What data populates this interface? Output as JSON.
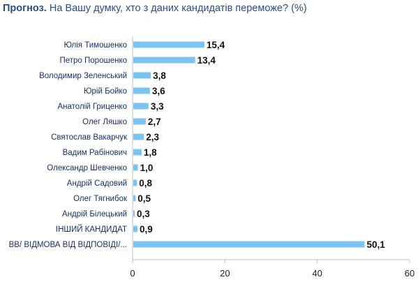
{
  "header": {
    "title_bold": "Прогноз.",
    "title_rest": " На Вашу думку, хто з даних кандидатів переможе? (%)"
  },
  "chart_data": {
    "type": "bar",
    "orientation": "horizontal",
    "title": "Прогноз. На Вашу думку, хто з даних кандидатів переможе? (%)",
    "categories": [
      "Юлія Тимошенко",
      "Петро Порошенко",
      "Володимир Зеленський",
      "Юрій Бойко",
      "Анатолій Гриценко",
      "Олег Ляшко",
      "Святослав Вакарчук",
      "Вадим Рабінович",
      "Олександр Шевченко",
      "Андрій Садовий",
      "Олег Тягнибок",
      "Андрій Білецький",
      "ІНШИЙ КАНДИДАТ",
      "ВВ/ ВІДМОВА ВІД ВІДПОВІДІ/..."
    ],
    "values": [
      15.4,
      13.4,
      3.8,
      3.6,
      3.3,
      2.7,
      2.3,
      1.8,
      1.0,
      0.8,
      0.5,
      0.3,
      0.9,
      50.1
    ],
    "value_labels": [
      "15,4",
      "13,4",
      "3,8",
      "3,6",
      "3,3",
      "2,7",
      "2,3",
      "1,8",
      "1,0",
      "0,8",
      "0,5",
      "0,3",
      "0,9",
      "50,1"
    ],
    "xlim": [
      0,
      60
    ],
    "xticks": [
      0,
      20,
      40,
      60
    ],
    "grid": false,
    "legend": "none",
    "bar_color": "#7cc4f0",
    "axis_color": "#bfbfbf"
  }
}
